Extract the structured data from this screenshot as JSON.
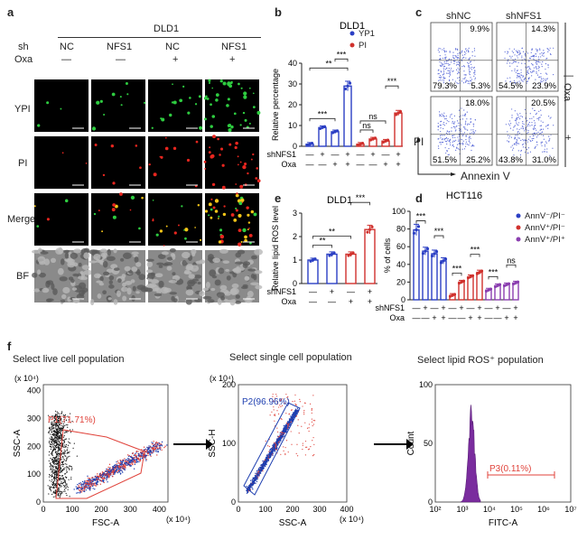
{
  "panels": {
    "a": {
      "letter": "a",
      "cell_line": "DLD1",
      "sh_label": "sh",
      "oxa_label": "Oxa",
      "columns": [
        {
          "sh": "NC",
          "oxa": "—"
        },
        {
          "sh": "NFS1",
          "oxa": "—"
        },
        {
          "sh": "NC",
          "oxa": "+"
        },
        {
          "sh": "NFS1",
          "oxa": "+"
        }
      ],
      "rows": [
        "YPI",
        "PI",
        "Merge",
        "BF"
      ]
    },
    "b": {
      "letter": "b"
    },
    "c": {
      "letter": "c",
      "col_labels": [
        "shNC",
        "shNFS1"
      ],
      "oxa_label": "Oxa",
      "oxa_minus": "—",
      "oxa_plus": "+",
      "pi_axis": "PI",
      "annexin_axis": "Annexin V",
      "quadrants": [
        {
          "ul": "",
          "ur": "9.9%",
          "ll": "79.3%",
          "lr": "5.3%"
        },
        {
          "ul": "",
          "ur": "14.3%",
          "ll": "54.5%",
          "lr": "23.9%"
        },
        {
          "ul": "",
          "ur": "18.0%",
          "ll": "51.5%",
          "lr": "25.2%"
        },
        {
          "ul": "",
          "ur": "20.5%",
          "ll": "43.8%",
          "lr": "31.0%"
        }
      ]
    },
    "d": {
      "letter": "d"
    },
    "e": {
      "letter": "e"
    },
    "f": {
      "letter": "f",
      "titles": [
        "Select live cell population",
        "Select single cell population",
        "Select lipid ROS⁺ population"
      ],
      "gates": [
        "P1(71.71%)",
        "P2(96.96%)",
        "P3(0.11%)"
      ],
      "plot1": {
        "ylabel": "SSC-A",
        "xlabel": "FSC-A",
        "yexp": "(x 10⁴)",
        "xexp": "(x 10⁴)",
        "yticks": [
          "0",
          "100",
          "200",
          "300",
          "400"
        ],
        "xticks": [
          "0",
          "100",
          "200",
          "300",
          "400"
        ]
      },
      "plot2": {
        "ylabel": "SSC-H",
        "xlabel": "SSC-A",
        "yexp": "(x 10⁴)",
        "xexp": "(x 10⁴)",
        "yticks": [
          "0",
          "100",
          "200"
        ],
        "xticks": [
          "0",
          "100",
          "200",
          "300",
          "400"
        ]
      },
      "plot3": {
        "ylabel": "Count",
        "xlabel": "FITC-A",
        "yticks": [
          "0",
          "50",
          "100"
        ],
        "xticks": [
          "10²",
          "10³",
          "10⁴",
          "10⁵",
          "10⁶",
          "10⁷"
        ]
      }
    }
  },
  "chart_data": [
    {
      "id": "b",
      "type": "bar",
      "title": "DLD1",
      "ylabel": "Relative percentage",
      "ylim": [
        0,
        40
      ],
      "yticks": [
        0,
        10,
        20,
        30,
        40
      ],
      "row_labels": [
        "shNFS1",
        "Oxa"
      ],
      "group_signs": [
        [
          "—",
          "+",
          "—",
          "+"
        ],
        [
          "—",
          "—",
          "+",
          "+"
        ]
      ],
      "series": [
        {
          "name": "YP1",
          "color": "#2b3fc4",
          "values": [
            1,
            9,
            7,
            29
          ]
        },
        {
          "name": "PI",
          "color": "#d0312d",
          "values": [
            1,
            3.5,
            2.5,
            16
          ]
        }
      ],
      "significance": [
        {
          "text": "***",
          "series": 0,
          "from": 0,
          "to": 2
        },
        {
          "text": "**",
          "series": 0,
          "from": 0,
          "to": 3
        },
        {
          "text": "***",
          "series": 0,
          "from": 2,
          "to": 3
        },
        {
          "text": "ns",
          "series": 1,
          "from": 0,
          "to": 1
        },
        {
          "text": "ns",
          "series": 1,
          "from": 0,
          "to": 2
        },
        {
          "text": "***",
          "series": 1,
          "from": 2,
          "to": 3
        }
      ]
    },
    {
      "id": "e",
      "type": "bar",
      "title": "DLD1",
      "ylabel": "Relative lipid ROS level",
      "ylim": [
        0,
        3
      ],
      "yticks": [
        0,
        1,
        2,
        3
      ],
      "row_labels": [
        "shNFS1",
        "Oxa"
      ],
      "group_signs": [
        [
          "—",
          "+",
          "—",
          "+"
        ],
        [
          "—",
          "—",
          "+",
          "+"
        ]
      ],
      "series": [
        {
          "name": "",
          "colors": [
            "#2b3fc4",
            "#2b3fc4",
            "#d0312d",
            "#d0312d"
          ],
          "values": [
            1.0,
            1.25,
            1.25,
            2.3
          ]
        }
      ],
      "significance": [
        {
          "text": "**",
          "from": 0,
          "to": 1
        },
        {
          "text": "**",
          "from": 0,
          "to": 2
        },
        {
          "text": "***",
          "from": 2,
          "to": 3
        }
      ]
    },
    {
      "id": "d",
      "type": "bar",
      "title": "HCT116",
      "ylabel": "% of cells",
      "ylim": [
        0,
        100
      ],
      "yticks": [
        0,
        20,
        40,
        60,
        80,
        100
      ],
      "row_labels": [
        "shNFS1",
        "Oxa"
      ],
      "group_signs": [
        [
          "—",
          "+",
          "—",
          "+"
        ],
        [
          "—",
          "—",
          "+",
          "+"
        ]
      ],
      "series": [
        {
          "name": "AnnV⁻/PI⁻",
          "color": "#2b3fc4",
          "values": [
            79,
            55,
            52,
            44
          ]
        },
        {
          "name": "AnnV⁺/PI⁻",
          "color": "#d0312d",
          "values": [
            5,
            20,
            26,
            31
          ]
        },
        {
          "name": "AnnV⁺/PI⁺",
          "color": "#8b3fb0",
          "values": [
            11,
            16,
            17,
            19
          ]
        }
      ],
      "significance": [
        {
          "text": "***",
          "series": 0,
          "from": 0,
          "to": 1
        },
        {
          "text": "***",
          "series": 0,
          "from": 2,
          "to": 3
        },
        {
          "text": "***",
          "series": 1,
          "from": 0,
          "to": 1
        },
        {
          "text": "***",
          "series": 1,
          "from": 2,
          "to": 3
        },
        {
          "text": "***",
          "series": 2,
          "from": 0,
          "to": 1
        },
        {
          "text": "ns",
          "series": 2,
          "from": 2,
          "to": 3
        }
      ]
    }
  ]
}
